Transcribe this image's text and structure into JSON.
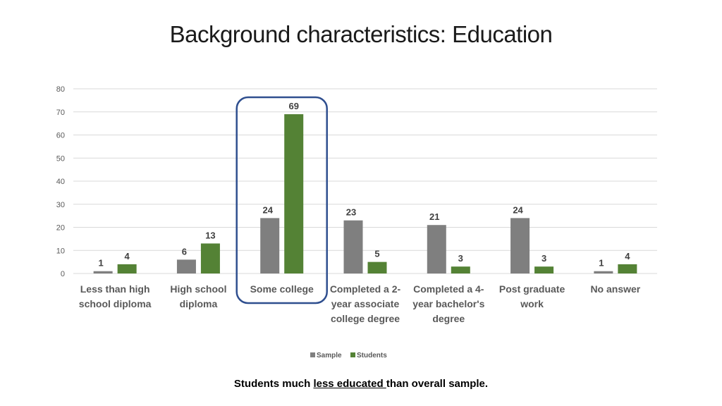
{
  "slide": {
    "title": "Background characteristics: Education",
    "note_prefix": "Students much ",
    "note_emphasis": "less educated ",
    "note_suffix": "than overall sample."
  },
  "colors": {
    "sample": "#7f7f7f",
    "students": "#548235",
    "highlight": "#2f4f8f",
    "grid": "#d9d9d9",
    "axis_text": "#595959"
  },
  "chart_data": {
    "type": "bar",
    "title": "",
    "xlabel": "",
    "ylabel": "",
    "ylim": [
      0,
      80
    ],
    "yticks": [
      0,
      10,
      20,
      30,
      40,
      50,
      60,
      70,
      80
    ],
    "grid": true,
    "legend_position": "bottom",
    "categories": [
      [
        "Less than high",
        "school diploma"
      ],
      [
        "High school",
        "diploma"
      ],
      [
        "Some college"
      ],
      [
        "Completed a 2-",
        "year associate",
        "college degree"
      ],
      [
        "Completed a 4-",
        "year bachelor's",
        "degree"
      ],
      [
        "Post graduate",
        "work"
      ],
      [
        "No answer"
      ]
    ],
    "series": [
      {
        "name": "Sample",
        "values": [
          1,
          6,
          24,
          23,
          21,
          24,
          1
        ]
      },
      {
        "name": "Students",
        "values": [
          4,
          13,
          69,
          5,
          3,
          3,
          4
        ]
      }
    ],
    "highlighted_category": "Some college"
  }
}
